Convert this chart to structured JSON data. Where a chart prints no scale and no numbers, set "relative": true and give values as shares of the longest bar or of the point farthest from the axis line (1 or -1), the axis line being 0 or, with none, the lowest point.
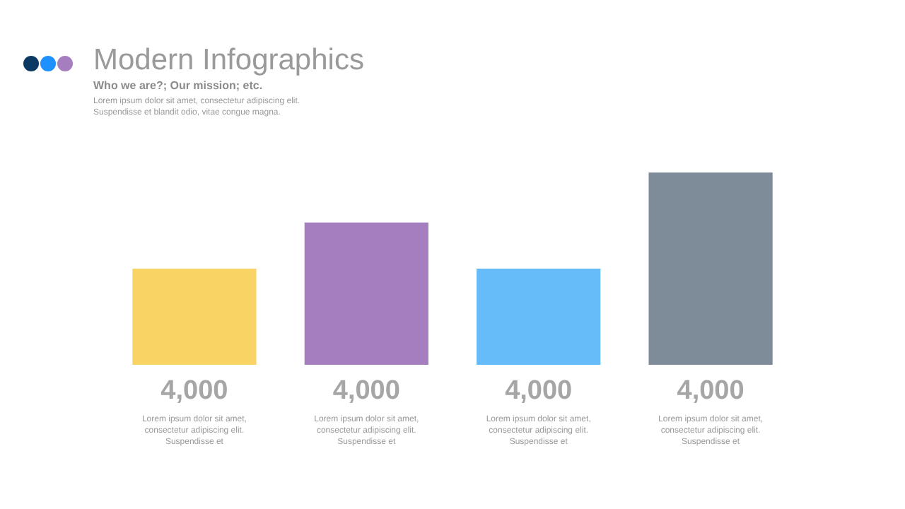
{
  "chart_data": {
    "type": "bar",
    "title": "Modern Infographics",
    "subtitle": "Who we are?; Our mission; etc.",
    "annotations": [
      "Lorem ipsum dolor sit amet, consectetur adipiscing elit.\nSuspendisse et blandit odio, vitae congue magna.",
      "4,000\nLorem ipsum dolor sit amet,\nconsectetur adipiscing elit.\nSuspendisse et",
      "4,000\nLorem ipsum dolor sit amet,\nconsectetur adipiscing elit.\nSuspendisse et",
      "4,000\nLorem ipsum dolor sit amet,\nconsectetur adipiscing elit.\nSuspendisse et",
      "4,000\nLorem ipsum dolor sit amet,\nconsectetur adipiscing elit.\nSuspendisse et"
    ],
    "categories": [
      null,
      null,
      null,
      null
    ],
    "relative": true,
    "values": [
      0.5,
      0.74,
      0.5,
      1
    ],
    "colors": [
      "#f9d464",
      "#a57ec0",
      "#66bbf9",
      "#7e8c99"
    ]
  }
}
